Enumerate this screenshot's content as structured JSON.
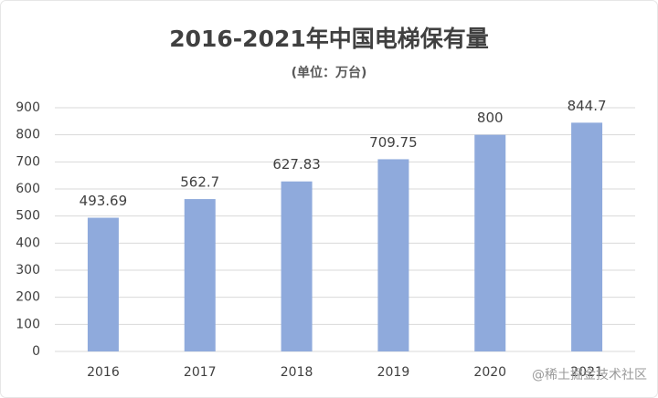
{
  "chart_data": {
    "type": "bar",
    "title": "2016-2021年中国电梯保有量",
    "subtitle": "(单位：万台)",
    "categories": [
      "2016",
      "2017",
      "2018",
      "2019",
      "2020",
      "2021"
    ],
    "values": [
      493.69,
      562.7,
      627.83,
      709.75,
      800,
      844.7
    ],
    "color": "#8faadc",
    "ylim": [
      0,
      900
    ],
    "yticks": [
      0,
      100,
      200,
      300,
      400,
      500,
      600,
      700,
      800,
      900
    ],
    "grid": true,
    "watermark": "@稀土掘金技术社区"
  }
}
